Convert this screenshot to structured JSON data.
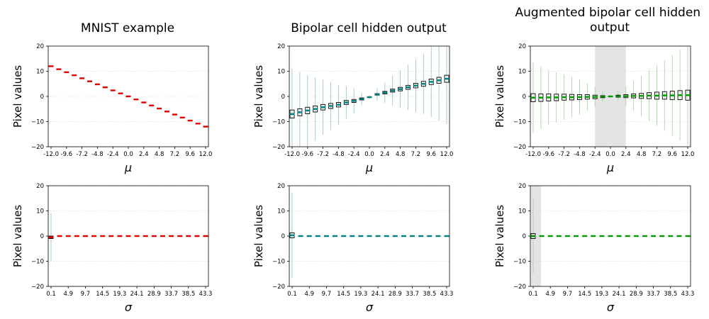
{
  "colors": {
    "mnist": "#e00000",
    "bipolar": "#008080",
    "augmented": "#009900",
    "shade": "#e4e4e4",
    "grid": "#cccccc",
    "whisker_bipolar": "#8fc4c0",
    "whisker_augmented": "#9fd49a"
  },
  "chart_data": [
    {
      "id": "mnist_mu",
      "type": "box",
      "title": "MNIST example",
      "xlabel": "μ",
      "ylabel": "Pixel values",
      "ylim": [
        -20,
        20
      ],
      "yticks": [
        -20,
        -10,
        0,
        10,
        20
      ],
      "grid": "y",
      "color": "mnist",
      "xtick_labels": [
        "-12.0",
        "-9.6",
        "-7.2",
        "-4.8",
        "-2.4",
        "0.0",
        "2.4",
        "4.8",
        "7.2",
        "9.6",
        "12.0"
      ],
      "x": [
        -12.0,
        -10.8,
        -9.6,
        -8.4,
        -7.2,
        -6.0,
        -4.8,
        -3.6,
        -2.4,
        -1.2,
        0.0,
        1.2,
        2.4,
        3.6,
        4.8,
        6.0,
        7.2,
        8.4,
        9.6,
        10.8,
        12.0
      ],
      "median": [
        12.0,
        10.8,
        9.6,
        8.4,
        7.2,
        6.0,
        4.8,
        3.6,
        2.4,
        1.2,
        0.0,
        -1.2,
        -2.4,
        -3.6,
        -4.8,
        -6.0,
        -7.2,
        -8.4,
        -9.6,
        -10.8,
        -12.0
      ],
      "spread": [
        0.1,
        0.1,
        0.1,
        0.1,
        0.1,
        0.1,
        0.1,
        0.1,
        0.1,
        0.1,
        0.1,
        0.1,
        0.1,
        0.1,
        0.1,
        0.1,
        0.1,
        0.1,
        0.1,
        0.1,
        0.1
      ],
      "whisker": [
        0.2,
        0.2,
        0.2,
        0.2,
        0.2,
        0.2,
        0.2,
        0.2,
        0.2,
        0.2,
        0.2,
        0.2,
        0.2,
        0.2,
        0.2,
        0.2,
        0.2,
        0.2,
        0.2,
        0.2,
        0.2
      ]
    },
    {
      "id": "bipolar_mu",
      "type": "box",
      "title": "Bipolar cell hidden output",
      "xlabel": "μ",
      "ylabel": "Pixel values",
      "ylim": [
        -20,
        20
      ],
      "yticks": [
        -20,
        -10,
        0,
        10,
        20
      ],
      "grid": "y",
      "color": "bipolar",
      "whisker_color": "whisker_bipolar",
      "xtick_labels": [
        "-12.0",
        "-9.6",
        "-7.2",
        "-4.8",
        "-2.4",
        "0.0",
        "2.4",
        "4.8",
        "7.2",
        "9.6",
        "12.0"
      ],
      "x": [
        -12.0,
        -10.8,
        -9.6,
        -8.4,
        -7.2,
        -6.0,
        -4.8,
        -3.6,
        -2.4,
        -1.2,
        0.0,
        1.2,
        2.4,
        3.6,
        4.8,
        6.0,
        7.2,
        8.4,
        9.6,
        10.8,
        12.0
      ],
      "median": [
        -7.0,
        -6.3,
        -5.6,
        -5.0,
        -4.3,
        -3.8,
        -3.3,
        -2.4,
        -1.8,
        -1.0,
        -0.3,
        0.8,
        1.5,
        2.3,
        2.9,
        3.6,
        4.3,
        5.0,
        5.8,
        6.4,
        7.0
      ],
      "spread": [
        1.6,
        1.4,
        1.3,
        1.2,
        1.1,
        1.0,
        0.9,
        0.8,
        0.6,
        0.4,
        0.2,
        0.3,
        0.5,
        0.6,
        0.7,
        0.8,
        0.9,
        1.0,
        1.1,
        1.2,
        1.4
      ],
      "whisker": [
        18.0,
        16.0,
        14.0,
        12.5,
        11.0,
        9.5,
        8.0,
        6.5,
        5.0,
        2.5,
        0.8,
        2.5,
        4.0,
        6.0,
        7.5,
        9.0,
        10.5,
        12.0,
        14.0,
        16.0,
        18.0
      ]
    },
    {
      "id": "augmented_mu",
      "type": "box",
      "title": "Augmented bipolar cell hidden output",
      "xlabel": "μ",
      "ylabel": "Pixel values",
      "ylim": [
        -20,
        20
      ],
      "yticks": [
        -20,
        -10,
        0,
        10,
        20
      ],
      "grid": "y",
      "color": "augmented",
      "whisker_color": "whisker_augmented",
      "shade_x": [
        -2.4,
        2.4
      ],
      "xtick_labels": [
        "-12.0",
        "-9.6",
        "-7.2",
        "-4.8",
        "-2.4",
        "0.0",
        "2.4",
        "4.8",
        "7.2",
        "9.6",
        "12.0"
      ],
      "x": [
        -12.0,
        -10.8,
        -9.6,
        -8.4,
        -7.2,
        -6.0,
        -4.8,
        -3.6,
        -2.4,
        -1.2,
        0.0,
        1.2,
        2.4,
        3.6,
        4.8,
        6.0,
        7.2,
        8.4,
        9.6,
        10.8,
        12.0
      ],
      "median": [
        -0.5,
        -0.5,
        -0.4,
        -0.4,
        -0.3,
        -0.3,
        -0.3,
        -0.2,
        -0.2,
        -0.1,
        0.0,
        0.1,
        0.1,
        0.2,
        0.2,
        0.3,
        0.3,
        0.4,
        0.4,
        0.5,
        0.5
      ],
      "spread": [
        1.6,
        1.5,
        1.4,
        1.3,
        1.2,
        1.1,
        1.0,
        0.9,
        0.7,
        0.4,
        0.2,
        0.4,
        0.6,
        0.8,
        1.0,
        1.2,
        1.4,
        1.5,
        1.7,
        1.8,
        2.0
      ],
      "whisker": [
        14.0,
        12.5,
        11.0,
        10.0,
        9.0,
        8.0,
        7.0,
        5.5,
        4.0,
        2.0,
        0.7,
        2.0,
        4.0,
        6.0,
        8.0,
        10.0,
        12.0,
        14.0,
        16.0,
        18.0,
        20.0
      ]
    },
    {
      "id": "mnist_sigma",
      "type": "box",
      "title": "",
      "xlabel": "σ",
      "ylabel": "Pixel values",
      "ylim": [
        -20,
        20
      ],
      "yticks": [
        -20,
        -10,
        0,
        10,
        20
      ],
      "grid": "y",
      "color": "mnist",
      "whisker_color": "whisker_bipolar",
      "xtick_labels": [
        "0.1",
        "4.9",
        "9.7",
        "14.5",
        "19.3",
        "24.1",
        "28.9",
        "33.7",
        "38.5",
        "43.3"
      ],
      "x": [
        0.1,
        2.5,
        4.9,
        7.3,
        9.7,
        12.1,
        14.5,
        16.9,
        19.3,
        21.7,
        24.1,
        26.5,
        28.9,
        31.3,
        33.7,
        36.1,
        38.5,
        40.9,
        43.3
      ],
      "median": [
        -0.5,
        0.0,
        0.0,
        0.0,
        0.0,
        0.0,
        0.0,
        0.0,
        0.0,
        0.0,
        0.0,
        0.0,
        0.0,
        0.0,
        0.0,
        0.0,
        0.0,
        0.0,
        0.0
      ],
      "spread": [
        0.5,
        0.1,
        0.1,
        0.1,
        0.1,
        0.1,
        0.1,
        0.1,
        0.1,
        0.1,
        0.1,
        0.1,
        0.1,
        0.1,
        0.1,
        0.1,
        0.1,
        0.1,
        0.1
      ],
      "whisker": [
        9.5,
        0.2,
        0.2,
        0.2,
        0.2,
        0.2,
        0.2,
        0.2,
        0.2,
        0.2,
        0.2,
        0.2,
        0.2,
        0.2,
        0.2,
        0.2,
        0.2,
        0.2,
        0.2
      ]
    },
    {
      "id": "bipolar_sigma",
      "type": "box",
      "title": "",
      "xlabel": "σ",
      "ylabel": "Pixel values",
      "ylim": [
        -20,
        20
      ],
      "yticks": [
        -20,
        -10,
        0,
        10,
        20
      ],
      "grid": "y",
      "color": "bipolar",
      "whisker_color": "whisker_bipolar",
      "xtick_labels": [
        "0.1",
        "4.9",
        "9.7",
        "14.5",
        "19.3",
        "24.1",
        "28.9",
        "33.7",
        "38.5",
        "43.3"
      ],
      "x": [
        0.1,
        2.5,
        4.9,
        7.3,
        9.7,
        12.1,
        14.5,
        16.9,
        19.3,
        21.7,
        24.1,
        26.5,
        28.9,
        31.3,
        33.7,
        36.1,
        38.5,
        40.9,
        43.3
      ],
      "median": [
        0.3,
        0.0,
        0.0,
        0.0,
        0.0,
        0.0,
        0.0,
        0.0,
        0.0,
        0.0,
        0.0,
        0.0,
        0.0,
        0.0,
        0.0,
        0.0,
        0.0,
        0.0,
        0.0
      ],
      "spread": [
        1.0,
        0.1,
        0.1,
        0.1,
        0.1,
        0.1,
        0.1,
        0.1,
        0.1,
        0.1,
        0.1,
        0.1,
        0.1,
        0.1,
        0.1,
        0.1,
        0.1,
        0.1,
        0.1
      ],
      "whisker": [
        17.0,
        0.2,
        0.2,
        0.2,
        0.2,
        0.2,
        0.2,
        0.2,
        0.2,
        0.2,
        0.2,
        0.2,
        0.2,
        0.2,
        0.2,
        0.2,
        0.2,
        0.2,
        0.2
      ]
    },
    {
      "id": "augmented_sigma",
      "type": "box",
      "title": "",
      "xlabel": "σ",
      "ylabel": "Pixel values",
      "ylim": [
        -20,
        20
      ],
      "yticks": [
        -20,
        -10,
        0,
        10,
        20
      ],
      "grid": "y",
      "color": "augmented",
      "whisker_color": "whisker_augmented",
      "shade_x": [
        -0.5,
        2.3
      ],
      "xtick_labels": [
        "0.1",
        "4.9",
        "9.7",
        "14.5",
        "19.3",
        "24.1",
        "28.9",
        "33.7",
        "38.5",
        "43.3"
      ],
      "x": [
        0.1,
        2.5,
        4.9,
        7.3,
        9.7,
        12.1,
        14.5,
        16.9,
        19.3,
        21.7,
        24.1,
        26.5,
        28.9,
        31.3,
        33.7,
        36.1,
        38.5,
        40.9,
        43.3
      ],
      "median": [
        0.0,
        0.0,
        0.0,
        0.0,
        0.0,
        0.0,
        0.0,
        0.0,
        0.0,
        0.0,
        0.0,
        0.0,
        0.0,
        0.0,
        0.0,
        0.0,
        0.0,
        0.0,
        0.0
      ],
      "spread": [
        1.0,
        0.1,
        0.1,
        0.1,
        0.1,
        0.1,
        0.1,
        0.1,
        0.1,
        0.1,
        0.1,
        0.1,
        0.1,
        0.1,
        0.1,
        0.1,
        0.1,
        0.1,
        0.1
      ],
      "whisker": [
        15.0,
        0.2,
        0.2,
        0.2,
        0.2,
        0.2,
        0.2,
        0.2,
        0.2,
        0.2,
        0.2,
        0.2,
        0.2,
        0.2,
        0.2,
        0.2,
        0.2,
        0.2,
        0.2
      ]
    }
  ]
}
